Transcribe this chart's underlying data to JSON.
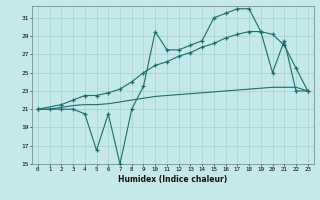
{
  "xlabel": "Humidex (Indice chaleur)",
  "xlim": [
    -0.5,
    23.5
  ],
  "ylim": [
    15,
    32
  ],
  "yticks": [
    15,
    17,
    19,
    21,
    23,
    25,
    27,
    29,
    31
  ],
  "xticks": [
    0,
    1,
    2,
    3,
    4,
    5,
    6,
    7,
    8,
    9,
    10,
    11,
    12,
    13,
    14,
    15,
    16,
    17,
    18,
    19,
    20,
    21,
    22,
    23
  ],
  "bg_color": "#c5e8e8",
  "grid_color": "#a8d0d0",
  "line_color": "#1a6e6e",
  "line1_x": [
    0,
    1,
    2,
    3,
    4,
    5,
    6,
    7,
    8,
    9,
    10,
    11,
    12,
    13,
    14,
    15,
    16,
    17,
    18,
    19,
    20,
    21,
    22,
    23
  ],
  "line1_y": [
    21,
    21,
    21,
    21,
    20.5,
    16.5,
    20.5,
    15,
    21,
    23.5,
    29.5,
    27.5,
    27.5,
    28,
    28.5,
    31,
    31.5,
    32,
    32,
    29.5,
    25,
    28.5,
    23,
    23
  ],
  "line2_x": [
    0,
    2,
    3,
    4,
    5,
    6,
    7,
    8,
    9,
    10,
    11,
    12,
    13,
    14,
    15,
    16,
    17,
    18,
    19,
    20,
    21,
    22,
    23
  ],
  "line2_y": [
    21,
    21.5,
    22,
    22.5,
    22.5,
    22.8,
    23.2,
    24,
    25,
    25.8,
    26.2,
    26.8,
    27.2,
    27.8,
    28.2,
    28.8,
    29.2,
    29.5,
    29.5,
    29.2,
    28,
    25.5,
    23
  ],
  "line3_x": [
    0,
    1,
    2,
    3,
    4,
    5,
    6,
    7,
    8,
    9,
    10,
    11,
    12,
    13,
    14,
    15,
    16,
    17,
    18,
    19,
    20,
    21,
    22,
    23
  ],
  "line3_y": [
    21,
    21,
    21.2,
    21.4,
    21.5,
    21.5,
    21.6,
    21.8,
    22.0,
    22.2,
    22.4,
    22.5,
    22.6,
    22.7,
    22.8,
    22.9,
    23.0,
    23.1,
    23.2,
    23.3,
    23.4,
    23.4,
    23.4,
    23.0
  ]
}
